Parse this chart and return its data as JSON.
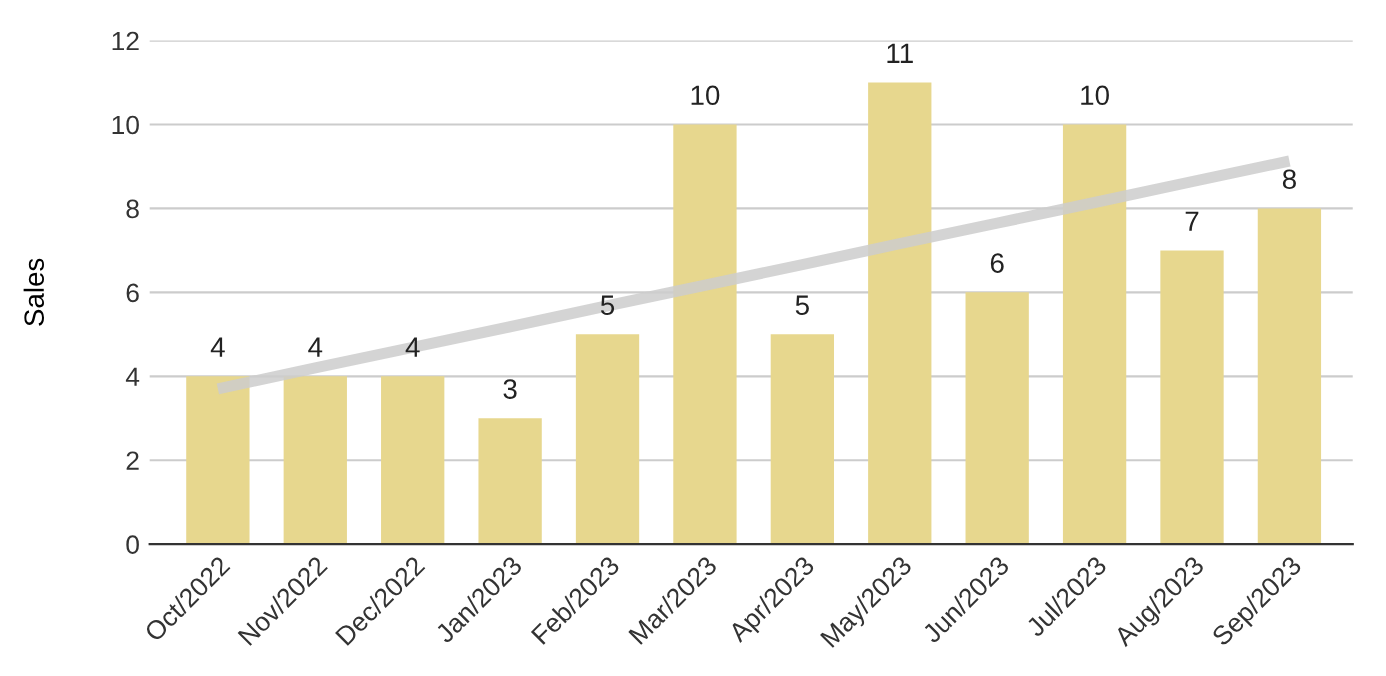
{
  "chart_data": {
    "type": "bar",
    "ylabel": "Sales",
    "categories": [
      "Oct/2022",
      "Nov/2022",
      "Dec/2022",
      "Jan/2023",
      "Feb/2023",
      "Mar/2023",
      "Apr/2023",
      "May/2023",
      "Jun/2023",
      "Jul/2023",
      "Aug/2023",
      "Sep/2023"
    ],
    "series": [
      {
        "color": "#e7d78e",
        "values": [
          4,
          4,
          4,
          3,
          5,
          10,
          5,
          11,
          6,
          10,
          7,
          8
        ],
        "value_labels": [
          "4",
          "4",
          "4",
          "3",
          "5",
          "10",
          "5",
          "11",
          "6",
          "10",
          "7",
          "8"
        ]
      },
      {
        "type": "line",
        "color": "#cccccc",
        "values": [
          3.7,
          4.2,
          4.69,
          5.18,
          5.68,
          6.17,
          6.66,
          7.16,
          7.65,
          8.14,
          8.64,
          9.13
        ]
      }
    ],
    "ylim": [
      0,
      12
    ],
    "yticks": [
      0,
      2,
      4,
      6,
      8,
      10,
      12
    ],
    "grid": "y",
    "legend": false
  }
}
